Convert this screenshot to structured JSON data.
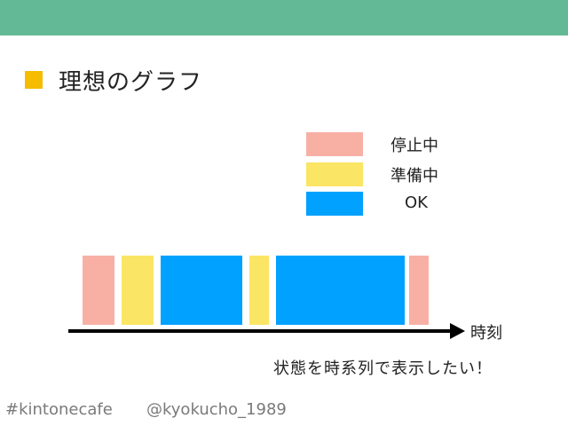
{
  "slide": {
    "title": "理想のグラフ",
    "accent_color": "#63b996",
    "bullet_color": "#f5bc00"
  },
  "legend": [
    {
      "label": "停止中",
      "color": "#f8b0a5"
    },
    {
      "label": "準備中",
      "color": "#fbe565"
    },
    {
      "label": "OK",
      "color": "#00a1ff"
    }
  ],
  "timeline": {
    "segments": [
      {
        "state": "停止中",
        "color": "#f8b0a5"
      },
      {
        "state": "準備中",
        "color": "#fbe565"
      },
      {
        "state": "OK",
        "color": "#00a1ff"
      },
      {
        "state": "準備中",
        "color": "#fbe565"
      },
      {
        "state": "OK",
        "color": "#00a1ff"
      },
      {
        "state": "停止中",
        "color": "#f8b0a5"
      }
    ],
    "axis_label": "時刻"
  },
  "caption": "状態を時系列で表示したい！",
  "footer": {
    "hashtag": "#kintonecafe",
    "handle": "@kyokucho_1989"
  }
}
